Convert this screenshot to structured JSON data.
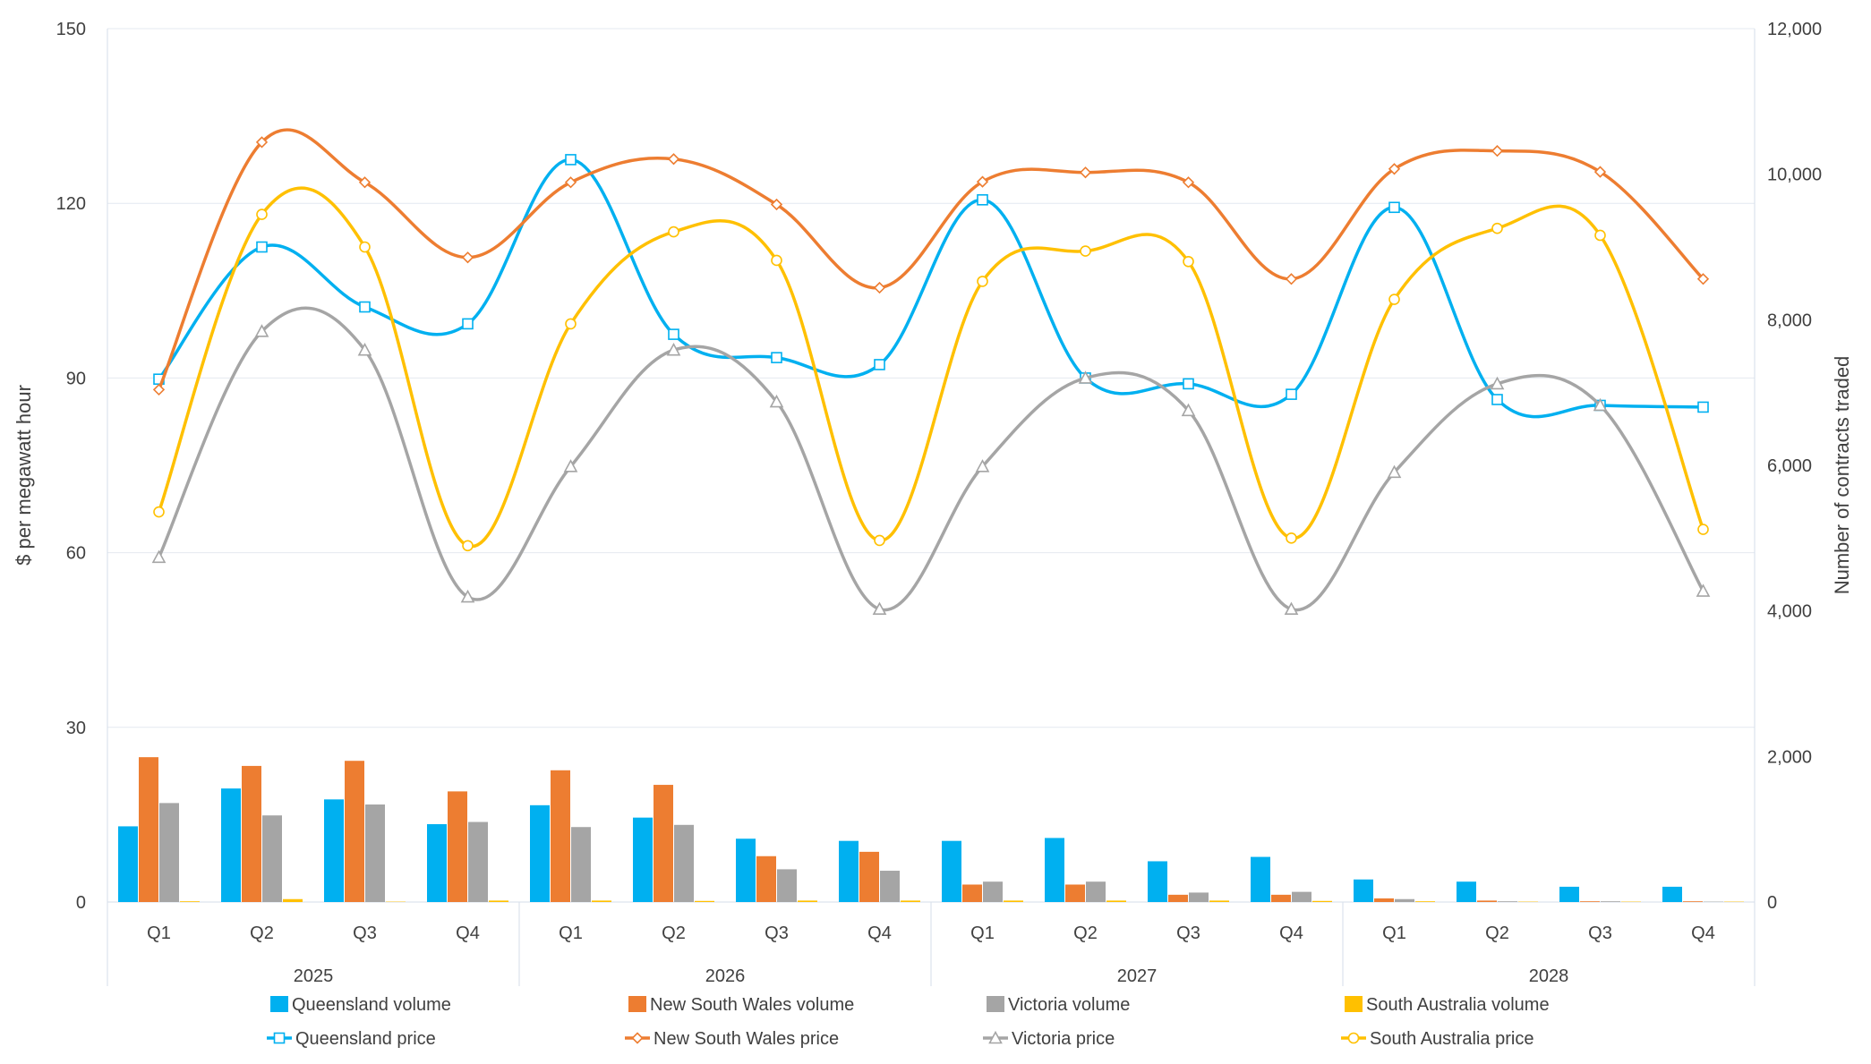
{
  "chart_data": {
    "type": "bar+line",
    "title": "",
    "y_left": {
      "label": "$ per megawatt hour",
      "min": 0,
      "max": 150,
      "ticks": [
        0,
        30,
        60,
        90,
        120,
        150
      ],
      "tick_labels": [
        "0",
        "30",
        "60",
        "90",
        "120",
        "150"
      ]
    },
    "y_right": {
      "label": "Number of contracts traded",
      "min": 0,
      "max": 12000,
      "ticks": [
        0,
        2000,
        4000,
        6000,
        8000,
        10000,
        12000
      ],
      "tick_labels": [
        "0",
        "2,000",
        "4,000",
        "6,000",
        "8,000",
        "10,000",
        "12,000"
      ]
    },
    "quarters": [
      "Q1",
      "Q2",
      "Q3",
      "Q4",
      "Q1",
      "Q2",
      "Q3",
      "Q4",
      "Q1",
      "Q2",
      "Q3",
      "Q4",
      "Q1",
      "Q2",
      "Q3",
      "Q4"
    ],
    "years": [
      "2025",
      "2026",
      "2027",
      "2028"
    ],
    "grid": true,
    "legend_position": "bottom",
    "bar_series": [
      {
        "name": "Queensland volume",
        "color": "#00B0F0",
        "values": [
          1040,
          1560,
          1410,
          1070,
          1330,
          1160,
          870,
          840,
          840,
          880,
          560,
          620,
          310,
          280,
          210,
          210
        ]
      },
      {
        "name": "New South Wales volume",
        "color": "#ED7D31",
        "values": [
          1990,
          1870,
          1940,
          1520,
          1810,
          1610,
          630,
          690,
          240,
          240,
          100,
          100,
          50,
          20,
          10,
          10
        ]
      },
      {
        "name": "Victoria volume",
        "color": "#A5A5A5",
        "values": [
          1360,
          1190,
          1340,
          1100,
          1030,
          1060,
          450,
          430,
          280,
          280,
          130,
          140,
          40,
          10,
          10,
          5
        ]
      },
      {
        "name": "South Australia volume",
        "color": "#FFC000",
        "values": [
          10,
          40,
          5,
          20,
          20,
          15,
          20,
          20,
          20,
          20,
          20,
          15,
          10,
          5,
          5,
          5
        ]
      }
    ],
    "line_series": [
      {
        "name": "Queensland price",
        "color": "#00B0F0",
        "marker": "square",
        "values": [
          89.8,
          112.5,
          102.2,
          99.3,
          127.5,
          97.5,
          93.5,
          92.3,
          120.6,
          90.0,
          89.0,
          87.2,
          119.3,
          86.3,
          85.3,
          85.0
        ]
      },
      {
        "name": "New South Wales price",
        "color": "#ED7D31",
        "marker": "diamond",
        "values": [
          88.0,
          130.5,
          123.6,
          110.7,
          123.6,
          127.6,
          119.8,
          105.5,
          123.7,
          125.3,
          123.6,
          107.0,
          125.9,
          129.0,
          125.4,
          107.0
        ]
      },
      {
        "name": "Victoria price",
        "color": "#A5A5A5",
        "marker": "triangle",
        "values": [
          59.2,
          98.0,
          94.8,
          52.4,
          74.8,
          94.8,
          85.9,
          50.3,
          74.8,
          90.0,
          84.4,
          50.3,
          73.8,
          89.0,
          85.3,
          53.4
        ]
      },
      {
        "name": "South Australia price",
        "color": "#FFC000",
        "marker": "circle",
        "values": [
          67.0,
          118.1,
          112.5,
          61.2,
          99.3,
          115.1,
          110.2,
          62.1,
          106.6,
          111.8,
          110.0,
          62.5,
          103.5,
          115.7,
          114.5,
          64.0
        ]
      }
    ]
  }
}
